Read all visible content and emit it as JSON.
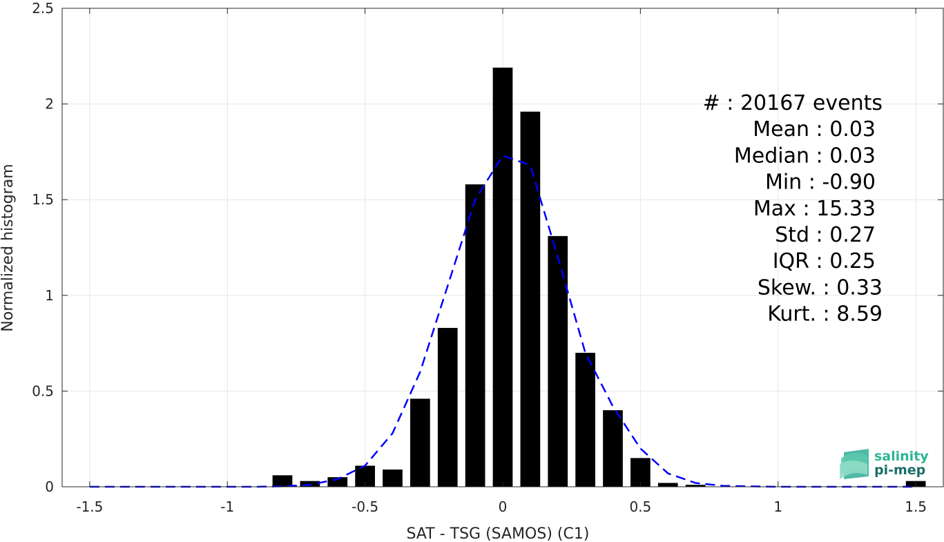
{
  "chart_data": {
    "type": "bar",
    "xlabel": "SAT - TSG (SAMOS) (C1)",
    "ylabel": "Normalized histogram",
    "xlim": [
      -1.6,
      1.6
    ],
    "ylim": [
      0,
      2.5
    ],
    "grid": true,
    "x_ticks": [
      {
        "value": -1.5,
        "label": "-1.5"
      },
      {
        "value": -1,
        "label": "-1"
      },
      {
        "value": -0.5,
        "label": "-0.5"
      },
      {
        "value": 0,
        "label": "0"
      },
      {
        "value": 0.5,
        "label": "0.5"
      },
      {
        "value": 1,
        "label": "1"
      },
      {
        "value": 1.5,
        "label": "1.5"
      }
    ],
    "y_ticks": [
      {
        "value": 0,
        "label": "0"
      },
      {
        "value": 0.5,
        "label": "0.5"
      },
      {
        "value": 1,
        "label": "1"
      },
      {
        "value": 1.5,
        "label": "1.5"
      },
      {
        "value": 2,
        "label": "2"
      },
      {
        "value": 2.5,
        "label": "2.5"
      }
    ],
    "bar_width": 0.072,
    "bars": {
      "x": [
        -0.8,
        -0.7,
        -0.6,
        -0.5,
        -0.4,
        -0.3,
        -0.2,
        -0.1,
        0.0,
        0.1,
        0.2,
        0.3,
        0.4,
        0.5,
        0.6,
        0.7,
        1.5
      ],
      "values": [
        0.06,
        0.03,
        0.05,
        0.11,
        0.09,
        0.46,
        0.83,
        1.58,
        2.19,
        1.96,
        1.31,
        0.7,
        0.4,
        0.15,
        0.02,
        0.01,
        0.03
      ],
      "color": "#000000"
    },
    "fit_line": {
      "style": "dashed",
      "color": "#0000ff",
      "x": [
        -1.5,
        -1.4,
        -1.3,
        -1.2,
        -1.1,
        -1.0,
        -0.9,
        -0.8,
        -0.7,
        -0.6,
        -0.5,
        -0.4,
        -0.3,
        -0.2,
        -0.1,
        0.0,
        0.1,
        0.2,
        0.3,
        0.4,
        0.5,
        0.6,
        0.7,
        0.8,
        0.9,
        1.0,
        1.1,
        1.2,
        1.3,
        1.4,
        1.5
      ],
      "y": [
        0,
        0,
        0,
        0,
        0,
        0,
        0,
        0.002,
        0.01,
        0.04,
        0.11,
        0.28,
        0.6,
        1.05,
        1.5,
        1.73,
        1.68,
        1.2,
        0.7,
        0.42,
        0.2,
        0.07,
        0.02,
        0.005,
        0.002,
        0,
        0,
        0,
        0,
        0,
        0
      ]
    },
    "annotations": [
      {
        "label": "#  :",
        "value": "20167 events"
      },
      {
        "label": "Mean :",
        "value": "0.03"
      },
      {
        "label": "Median :",
        "value": "0.03"
      },
      {
        "label": "Min :",
        "value": "-0.90"
      },
      {
        "label": "Max :",
        "value": "15.33"
      },
      {
        "label": "Std :",
        "value": "0.27"
      },
      {
        "label": "IQR :",
        "value": "0.25"
      },
      {
        "label": "Skew. :",
        "value": "0.33"
      },
      {
        "label": "Kurt. :",
        "value": "8.59"
      }
    ]
  },
  "logo": {
    "line1": "salinity",
    "line2": "pi-mep",
    "color1": "#2bb594",
    "color2": "#1a6f6a"
  }
}
